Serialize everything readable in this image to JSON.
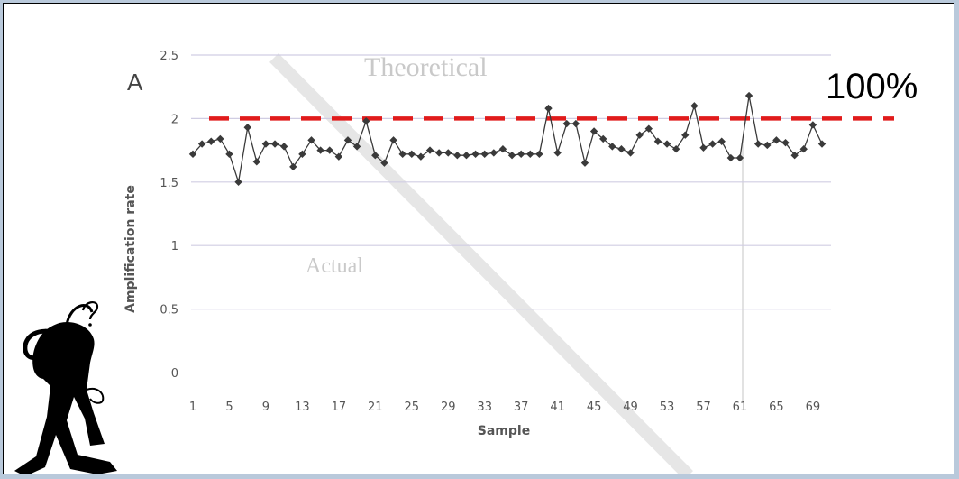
{
  "chart_data": {
    "type": "line",
    "panel_label": "A",
    "xlabel": "Sample",
    "ylabel": "Amplification rate",
    "ylim": [
      0,
      2.5
    ],
    "yticks": [
      0,
      0.5,
      1,
      1.5,
      2,
      2.5
    ],
    "xlim": [
      1,
      70
    ],
    "xticks": [
      1,
      5,
      9,
      13,
      17,
      21,
      25,
      29,
      33,
      37,
      41,
      45,
      49,
      53,
      57,
      61,
      65,
      69
    ],
    "gridlines": true,
    "marker": "diamond",
    "series": [
      {
        "x": [
          1,
          2,
          3,
          4,
          5,
          6,
          7,
          8,
          9,
          10,
          11,
          12,
          13,
          14,
          15,
          16,
          17,
          18,
          19,
          20,
          21,
          22,
          23,
          24,
          25,
          26,
          27,
          28,
          29,
          30,
          31,
          32,
          33,
          34,
          35,
          36,
          37,
          38,
          39,
          40,
          41,
          42,
          43,
          44,
          45,
          46,
          47,
          48,
          49,
          50,
          51,
          52,
          53,
          54,
          55,
          56,
          57,
          58,
          59,
          60,
          61,
          62,
          63,
          64,
          65,
          66,
          67,
          68,
          69,
          70
        ],
        "values": [
          1.72,
          1.8,
          1.82,
          1.84,
          1.72,
          1.5,
          1.93,
          1.66,
          1.8,
          1.8,
          1.78,
          1.62,
          1.72,
          1.83,
          1.75,
          1.75,
          1.7,
          1.83,
          1.78,
          1.98,
          1.71,
          1.65,
          1.83,
          1.72,
          1.72,
          1.7,
          1.75,
          1.73,
          1.73,
          1.71,
          1.71,
          1.72,
          1.72,
          1.73,
          1.76,
          1.71,
          1.72,
          1.72,
          1.72,
          2.08,
          1.73,
          1.96,
          1.96,
          1.65,
          1.9,
          1.84,
          1.78,
          1.76,
          1.73,
          1.87,
          1.92,
          1.82,
          1.8,
          1.76,
          1.87,
          2.1,
          1.77,
          1.8,
          1.82,
          1.69,
          1.69,
          2.18,
          1.8,
          1.79,
          1.83,
          1.81,
          1.71,
          1.76,
          1.95,
          1.8
        ]
      }
    ],
    "reference_line": {
      "value": 2,
      "label": "100%",
      "color": "#e11b1b",
      "style": "dashed"
    },
    "colors": {
      "series": "#3a3a3a",
      "grid": "#d0cde3"
    }
  },
  "background_words": [
    "Theoretical",
    "Actual"
  ]
}
